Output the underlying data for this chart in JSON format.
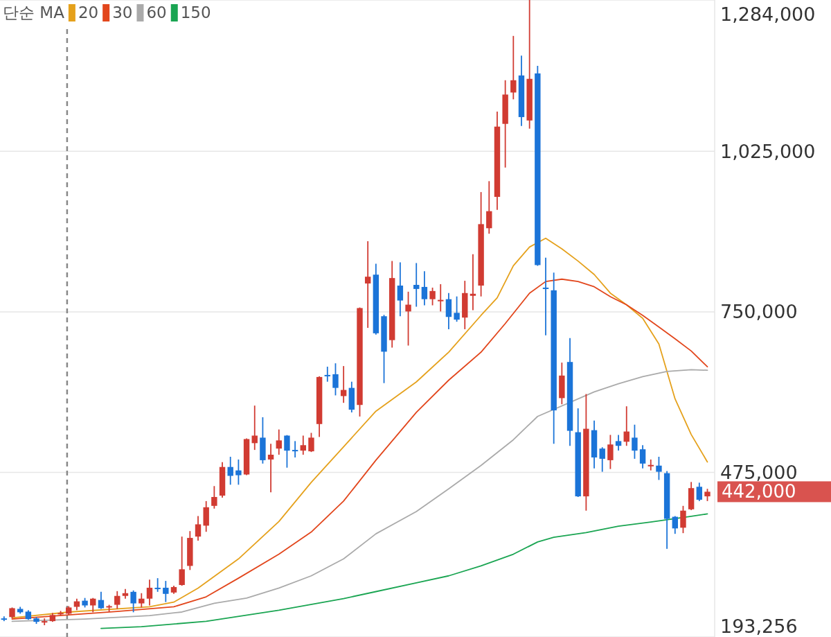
{
  "chart_data": {
    "type": "candlestick",
    "categories": [
      null,
      null,
      null,
      null,
      null,
      null,
      null,
      null,
      null,
      null,
      null,
      null,
      null,
      null,
      null,
      null,
      null,
      null,
      null,
      null,
      null,
      null,
      null,
      null,
      null,
      null,
      null,
      null,
      null,
      null,
      null,
      null,
      null,
      null,
      null,
      null,
      null,
      null,
      null,
      null,
      null,
      null,
      null,
      null,
      null,
      null,
      null,
      null,
      null,
      null,
      null,
      null,
      null,
      null,
      null,
      null,
      null,
      null,
      null,
      null,
      null,
      null,
      null,
      null,
      null,
      null,
      null,
      null,
      null,
      null,
      null,
      null,
      null,
      null,
      null,
      null,
      null,
      null,
      null,
      null,
      null,
      null,
      null,
      null,
      null,
      null,
      null,
      null
    ],
    "ohlc": [
      [
        225100,
        228600,
        220400,
        223900
      ],
      [
        227400,
        243800,
        225100,
        242600
      ],
      [
        241400,
        244900,
        233200,
        235600
      ],
      [
        236700,
        239100,
        222700,
        223900
      ],
      [
        225100,
        227400,
        215700,
        219200
      ],
      [
        219200,
        225100,
        213400,
        220400
      ],
      [
        220400,
        234400,
        219200,
        230900
      ],
      [
        233200,
        237900,
        229700,
        234400
      ],
      [
        233200,
        246100,
        230900,
        243800
      ],
      [
        244900,
        258900,
        239100,
        254300
      ],
      [
        255400,
        260100,
        243800,
        247300
      ],
      [
        247300,
        260100,
        235600,
        258900
      ],
      [
        256600,
        270600,
        241400,
        242600
      ],
      [
        244900,
        248400,
        236700,
        246100
      ],
      [
        248400,
        271800,
        241400,
        263600
      ],
      [
        263600,
        275300,
        258900,
        268300
      ],
      [
        270600,
        273000,
        235600,
        250800
      ],
      [
        250800,
        268300,
        243800,
        258900
      ],
      [
        258900,
        291600,
        247300,
        277600
      ],
      [
        277600,
        294000,
        270600,
        276500
      ],
      [
        277600,
        289300,
        253100,
        267100
      ],
      [
        269400,
        281100,
        267100,
        278800
      ],
      [
        282300,
        365200,
        281100,
        309200
      ],
      [
        315000,
        374600,
        308000,
        362900
      ],
      [
        365200,
        400300,
        358200,
        386200
      ],
      [
        383900,
        426000,
        373400,
        415400
      ],
      [
        417800,
        451700,
        413100,
        433000
      ],
      [
        435300,
        492500,
        431800,
        484400
      ],
      [
        484400,
        501900,
        454000,
        469200
      ],
      [
        478500,
        497200,
        454000,
        470300
      ],
      [
        471500,
        533400,
        470300,
        532200
      ],
      [
        525200,
        589500,
        513600,
        538100
      ],
      [
        534600,
        569600,
        490200,
        496000
      ],
      [
        497200,
        524100,
        441100,
        505400
      ],
      [
        515900,
        548600,
        505400,
        529900
      ],
      [
        538100,
        539000,
        483200,
        512400
      ],
      [
        513600,
        528700,
        500700,
        511200
      ],
      [
        512400,
        538100,
        505400,
        521700
      ],
      [
        511200,
        542800,
        510000,
        534600
      ],
      [
        557900,
        639700,
        535800,
        638500
      ],
      [
        642000,
        656100,
        630400,
        639700
      ],
      [
        643200,
        661900,
        607000,
        619800
      ],
      [
        605800,
        657200,
        594200,
        616300
      ],
      [
        619800,
        630400,
        577800,
        582500
      ],
      [
        590600,
        757500,
        570800,
        756500
      ],
      [
        798600,
        871000,
        722600,
        810200
      ],
      [
        813700,
        832400,
        711000,
        713300
      ],
      [
        742500,
        744800,
        628000,
        681800
      ],
      [
        701600,
        837100,
        688800,
        807900
      ],
      [
        795000,
        834800,
        742500,
        769400
      ],
      [
        750700,
        784500,
        692300,
        762300
      ],
      [
        796200,
        833600,
        758800,
        789200
      ],
      [
        792700,
        819600,
        761200,
        771700
      ],
      [
        771700,
        791500,
        761200,
        785700
      ],
      [
        768200,
        797400,
        750700,
        770500
      ],
      [
        771700,
        782200,
        720300,
        741300
      ],
      [
        748300,
        776400,
        733100,
        736700
      ],
      [
        740200,
        803200,
        720300,
        782200
      ],
      [
        777500,
        848800,
        753000,
        781000
      ],
      [
        795000,
        955100,
        776400,
        900200
      ],
      [
        893200,
        973800,
        883800,
        922400
      ],
      [
        946900,
        1092900,
        924700,
        1067200
      ],
      [
        1071900,
        1146600,
        997100,
        1122100
      ],
      [
        1125600,
        1222500,
        1113900,
        1146600
      ],
      [
        1154800,
        1188700,
        1068400,
        1083500
      ],
      [
        1077700,
        1284000,
        1063700,
        1149000
      ],
      [
        1158300,
        1171100,
        828900,
        830100
      ],
      [
        791500,
        842900,
        709800,
        789200
      ],
      [
        786900,
        817200,
        524100,
        581300
      ],
      [
        602300,
        663100,
        591800,
        640900
      ],
      [
        664200,
        705100,
        520600,
        546300
      ],
      [
        543900,
        584800,
        433000,
        434100
      ],
      [
        434100,
        609300,
        409600,
        549800
      ],
      [
        547400,
        563800,
        482000,
        500700
      ],
      [
        515900,
        518200,
        476200,
        498400
      ],
      [
        496000,
        539300,
        480900,
        522900
      ],
      [
        528700,
        539300,
        512400,
        520600
      ],
      [
        527600,
        588300,
        520600,
        545100
      ],
      [
        534600,
        556800,
        498400,
        512400
      ],
      [
        514700,
        521700,
        482000,
        490200
      ],
      [
        485500,
        497200,
        478500,
        487900
      ],
      [
        486700,
        501900,
        462200,
        476200
      ],
      [
        473800,
        477400,
        344200,
        395600
      ],
      [
        399100,
        400300,
        369900,
        379200
      ],
      [
        380400,
        417800,
        371100,
        409600
      ],
      [
        411900,
        458700,
        410500,
        448200
      ],
      [
        450500,
        457500,
        426000,
        428300
      ],
      [
        434100,
        447000,
        426000,
        442000
      ]
    ],
    "colors": [
      "#1b74d8",
      "#d13b32",
      "#1b74d8",
      "#1b74d8",
      "#1b74d8",
      "#d13b32",
      "#d13b32",
      "#d13b32",
      "#d13b32",
      "#d13b32",
      "#1b74d8",
      "#d13b32",
      "#1b74d8",
      "#d13b32",
      "#d13b32",
      "#d13b32",
      "#1b74d8",
      "#d13b32",
      "#d13b32",
      "#1b74d8",
      "#1b74d8",
      "#d13b32",
      "#d13b32",
      "#d13b32",
      "#d13b32",
      "#d13b32",
      "#d13b32",
      "#d13b32",
      "#1b74d8",
      "#1b74d8",
      "#d13b32",
      "#d13b32",
      "#1b74d8",
      "#d13b32",
      "#d13b32",
      "#1b74d8",
      "#1b74d8",
      "#d13b32",
      "#d13b32",
      "#d13b32",
      "#1b74d8",
      "#1b74d8",
      "#d13b32",
      "#1b74d8",
      "#d13b32",
      "#d13b32",
      "#1b74d8",
      "#1b74d8",
      "#d13b32",
      "#1b74d8",
      "#d13b32",
      "#1b74d8",
      "#1b74d8",
      "#d13b32",
      "#d13b32",
      "#1b74d8",
      "#1b74d8",
      "#d13b32",
      "#d13b32",
      "#d13b32",
      "#d13b32",
      "#d13b32",
      "#d13b32",
      "#d13b32",
      "#1b74d8",
      "#d13b32",
      "#1b74d8",
      "#1b74d8",
      "#1b74d8",
      "#d13b32",
      "#1b74d8",
      "#1b74d8",
      "#d13b32",
      "#1b74d8",
      "#1b74d8",
      "#d13b32",
      "#1b74d8",
      "#d13b32",
      "#1b74d8",
      "#1b74d8",
      "#d13b32",
      "#1b74d8",
      "#1b74d8",
      "#1b74d8",
      "#d13b32",
      "#d13b32",
      "#1b74d8",
      "#d13b32"
    ],
    "series": [
      {
        "name": "20",
        "type": "line",
        "color": "#e5a11c",
        "values": [
          null,
          226000,
          null,
          null,
          null,
          null,
          null,
          null,
          236000,
          null,
          null,
          null,
          null,
          null,
          null,
          null,
          null,
          null,
          245000,
          null,
          null,
          253000,
          null,
          null,
          277000,
          null,
          null,
          null,
          null,
          327000,
          null,
          null,
          null,
          null,
          391000,
          null,
          null,
          null,
          458000,
          null,
          null,
          null,
          519000,
          null,
          null,
          null,
          580000,
          null,
          null,
          null,
          null,
          630000,
          null,
          null,
          null,
          681000,
          null,
          null,
          null,
          744000,
          null,
          774000,
          null,
          829000,
          null,
          861000,
          null,
          876000,
          null,
          858000,
          null,
          837000,
          null,
          814000,
          null,
          782000,
          null,
          762000,
          null,
          739000,
          null,
          695000,
          null,
          601000,
          null,
          540000,
          null,
          493000
        ]
      },
      {
        "name": "30",
        "type": "line",
        "color": "#e2461c",
        "values": [
          null,
          224000,
          null,
          null,
          null,
          null,
          null,
          null,
          231000,
          null,
          null,
          null,
          null,
          null,
          237000,
          null,
          null,
          null,
          null,
          null,
          null,
          245000,
          null,
          null,
          null,
          262000,
          null,
          null,
          null,
          294000,
          null,
          null,
          null,
          null,
          335000,
          null,
          null,
          null,
          373000,
          null,
          null,
          null,
          426000,
          null,
          null,
          null,
          496000,
          null,
          null,
          null,
          null,
          578000,
          null,
          null,
          null,
          633000,
          null,
          null,
          null,
          681000,
          null,
          null,
          730000,
          null,
          null,
          782000,
          null,
          802000,
          null,
          806000,
          null,
          802000,
          null,
          793000,
          null,
          776000,
          null,
          762000,
          null,
          744000,
          null,
          724000,
          null,
          704000,
          null,
          683000,
          null,
          656000
        ]
      },
      {
        "name": "60",
        "type": "line",
        "color": "#aaaaaa",
        "values": [
          null,
          220000,
          null,
          null,
          null,
          null,
          null,
          null,
          null,
          null,
          224000,
          null,
          null,
          null,
          null,
          null,
          null,
          null,
          230000,
          null,
          null,
          null,
          236000,
          null,
          null,
          null,
          251000,
          null,
          null,
          null,
          260000,
          null,
          null,
          null,
          277000,
          null,
          null,
          null,
          298000,
          null,
          null,
          null,
          327000,
          null,
          null,
          null,
          370000,
          null,
          null,
          null,
          null,
          408000,
          null,
          null,
          null,
          447000,
          null,
          null,
          null,
          487000,
          null,
          null,
          null,
          531000,
          null,
          null,
          571000,
          null,
          null,
          null,
          null,
          null,
          null,
          613000,
          null,
          null,
          627000,
          null,
          null,
          639000,
          null,
          null,
          648000,
          null,
          null,
          651000,
          null,
          650000
        ]
      },
      {
        "name": "150",
        "type": "line",
        "color": "#1aa552",
        "values": [
          null,
          null,
          null,
          null,
          null,
          null,
          null,
          null,
          null,
          null,
          null,
          null,
          208000,
          null,
          null,
          null,
          null,
          211000,
          null,
          null,
          null,
          null,
          null,
          null,
          null,
          220000,
          null,
          null,
          null,
          null,
          null,
          null,
          null,
          null,
          239000,
          null,
          null,
          null,
          null,
          null,
          null,
          null,
          259000,
          null,
          null,
          null,
          271000,
          null,
          null,
          null,
          null,
          286000,
          null,
          null,
          null,
          298000,
          null,
          null,
          null,
          315000,
          null,
          null,
          null,
          335000,
          null,
          null,
          356000,
          null,
          364000,
          null,
          null,
          null,
          372000,
          null,
          null,
          null,
          383000,
          null,
          null,
          null,
          390000,
          null,
          null,
          null,
          null,
          400000,
          null,
          404000
        ]
      }
    ],
    "legend_title": "단순 MA",
    "legend": "top left",
    "ylim": [
      193256,
      1284000
    ],
    "yticks": [
      {
        "value": 193256,
        "label": "193,256"
      },
      {
        "value": 475000,
        "label": "475,000"
      },
      {
        "value": 750000,
        "label": "750,000"
      },
      {
        "value": 1025000,
        "label": "1,025,000"
      },
      {
        "value": 1284000,
        "label": "1,284,000"
      }
    ],
    "grid": "y",
    "annotations": [
      "442,000"
    ]
  }
}
